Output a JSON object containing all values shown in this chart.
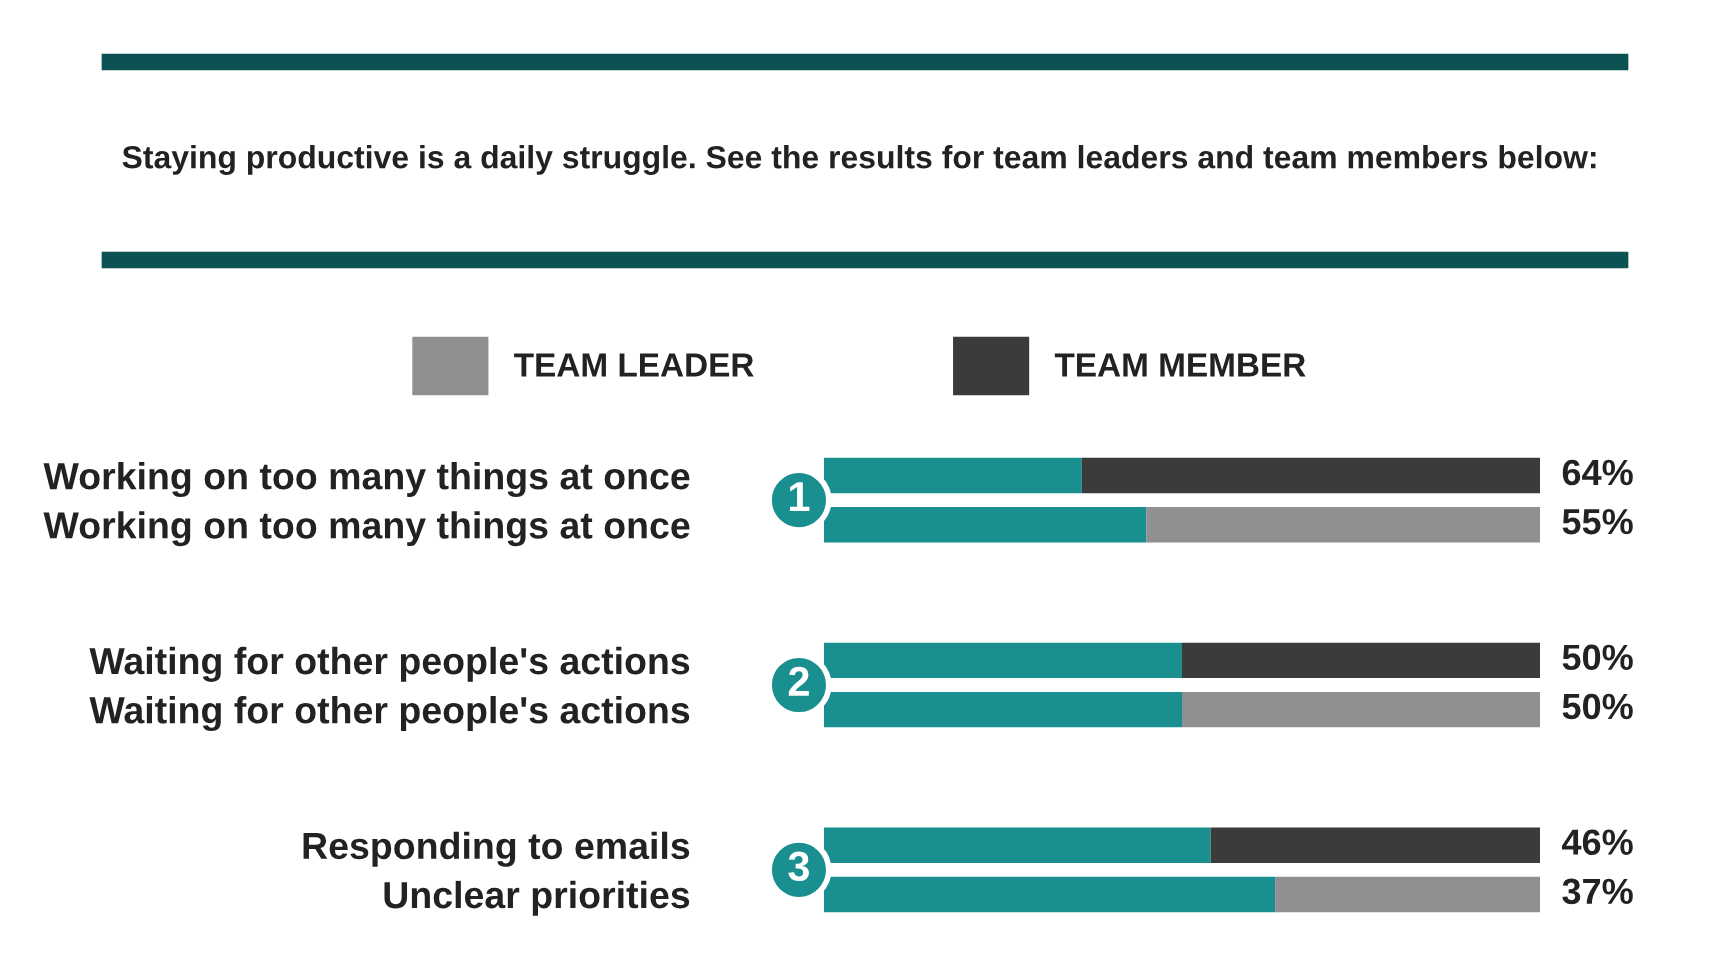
{
  "chart_data": {
    "type": "bar",
    "orientation": "horizontal",
    "stacked": true,
    "xlim": [
      0,
      100
    ],
    "subtitle": "Staying productive is a daily struggle. See the results for team leaders and team members below:",
    "categories": [
      "Working on too many things at once",
      "Working on too many things at once",
      "Waiting for other people's actions",
      "Waiting for other people's actions",
      "Responding to emails",
      "Unclear priorities"
    ],
    "series": [
      {
        "color": "#1a8f8f",
        "values": [
          36,
          45,
          50,
          50,
          54,
          63
        ]
      },
      {
        "name": "TEAM MEMBER",
        "color": "#3b3b3b",
        "values": [
          64,
          null,
          50,
          null,
          46,
          null
        ],
        "value_labels": [
          "64%",
          null,
          "50%",
          null,
          "46%",
          null
        ]
      },
      {
        "name": "TEAM LEADER",
        "color": "#8f9091",
        "values": [
          null,
          55,
          null,
          50,
          null,
          37
        ],
        "value_labels": [
          null,
          "55%",
          null,
          "50%",
          null,
          "37%"
        ]
      }
    ],
    "annotations": [
      "1",
      "2",
      "3"
    ],
    "legend": "top",
    "grid": false
  }
}
